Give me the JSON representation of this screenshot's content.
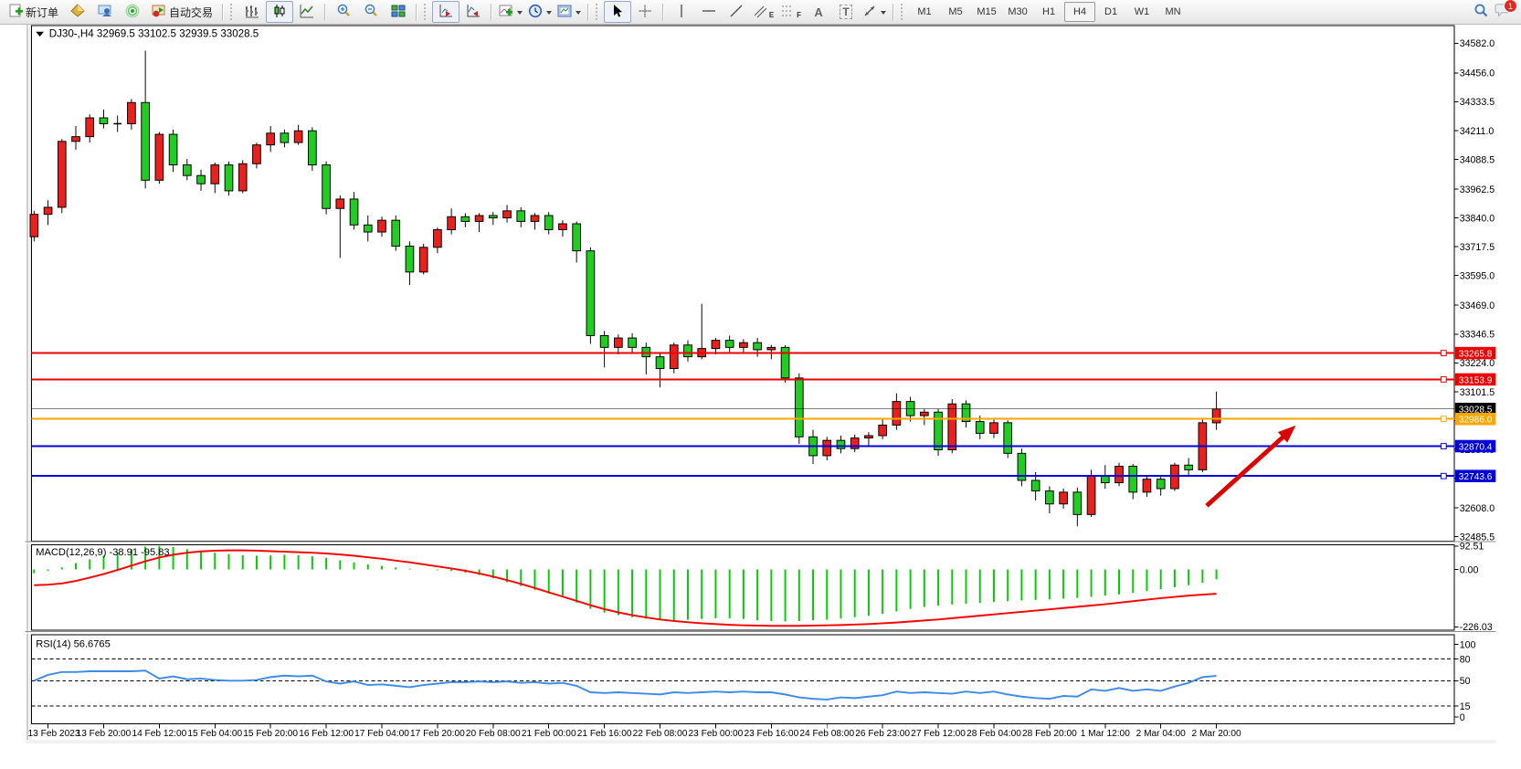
{
  "toolbar": {
    "new_order_label": "新订单",
    "autotrading_label": "自动交易",
    "timeframes": [
      "M1",
      "M5",
      "M15",
      "M30",
      "H1",
      "H4",
      "D1",
      "W1",
      "MN"
    ],
    "active_timeframe": "H4",
    "notification_count": "1",
    "icons": {
      "text_tool_glyph": "A",
      "label_tool_glyph": "T",
      "channel_sub": "E",
      "fibo_sub": "F"
    }
  },
  "chart": {
    "symbol": "DJ30-",
    "period": "H4",
    "title_full": "DJ30-,H4  32969.5 33102.5 32939.5 33028.5",
    "ohlc_current": {
      "open": 32969.5,
      "high": 33102.5,
      "low": 32939.5,
      "close": 33028.5
    }
  },
  "chart_data": [
    {
      "type": "candlestick",
      "symbol": "DJ30-",
      "timeframe": "H4",
      "bull_color": "#E8201E",
      "bear_color": "#22CC22",
      "outline_color": "#000000",
      "ylim": [
        32470,
        34650
      ],
      "y_ticks": [
        34582.0,
        34456.0,
        34333.5,
        34211.0,
        34088.5,
        33962.5,
        33840.0,
        33717.5,
        33595.0,
        33469.0,
        33346.5,
        33224.0,
        33101.5,
        32979.0,
        32856.5,
        32734.0,
        32608.0,
        32485.5
      ],
      "x_labels": [
        "13 Feb 2023",
        "13 Feb 20:00",
        "14 Feb 12:00",
        "15 Feb 04:00",
        "15 Feb 20:00",
        "16 Feb 12:00",
        "17 Feb 04:00",
        "17 Feb 20:00",
        "20 Feb 08:00",
        "21 Feb 00:00",
        "21 Feb 16:00",
        "22 Feb 08:00",
        "23 Feb 00:00",
        "23 Feb 16:00",
        "24 Feb 08:00",
        "26 Feb 23:00",
        "27 Feb 12:00",
        "28 Feb 04:00",
        "28 Feb 20:00",
        "1 Mar 12:00",
        "2 Mar 04:00",
        "2 Mar 20:00"
      ],
      "x_label_start_index": 1,
      "x_label_step": 4,
      "ohlc": [
        [
          33760,
          33870,
          33740,
          33855
        ],
        [
          33855,
          33915,
          33810,
          33885
        ],
        [
          33885,
          34175,
          33860,
          34165
        ],
        [
          34165,
          34230,
          34130,
          34185
        ],
        [
          34185,
          34280,
          34160,
          34265
        ],
        [
          34265,
          34300,
          34220,
          34240
        ],
        [
          34240,
          34275,
          34205,
          34240
        ],
        [
          34240,
          34345,
          34215,
          34330
        ],
        [
          34330,
          34550,
          33965,
          34000
        ],
        [
          34000,
          34205,
          33985,
          34195
        ],
        [
          34195,
          34215,
          34035,
          34065
        ],
        [
          34065,
          34090,
          34000,
          34020
        ],
        [
          34020,
          34045,
          33955,
          33985
        ],
        [
          33985,
          34075,
          33945,
          34065
        ],
        [
          34065,
          34080,
          33935,
          33955
        ],
        [
          33955,
          34085,
          33945,
          34070
        ],
        [
          34070,
          34160,
          34050,
          34150
        ],
        [
          34150,
          34230,
          34120,
          34200
        ],
        [
          34200,
          34215,
          34140,
          34160
        ],
        [
          34160,
          34235,
          34150,
          34210
        ],
        [
          34210,
          34225,
          34040,
          34065
        ],
        [
          34065,
          34080,
          33855,
          33880
        ],
        [
          33880,
          33935,
          33670,
          33920
        ],
        [
          33920,
          33950,
          33790,
          33810
        ],
        [
          33810,
          33850,
          33740,
          33780
        ],
        [
          33780,
          33845,
          33760,
          33830
        ],
        [
          33830,
          33850,
          33700,
          33720
        ],
        [
          33720,
          33740,
          33555,
          33610
        ],
        [
          33610,
          33730,
          33600,
          33715
        ],
        [
          33715,
          33800,
          33690,
          33790
        ],
        [
          33790,
          33880,
          33770,
          33845
        ],
        [
          33845,
          33860,
          33800,
          33825
        ],
        [
          33825,
          33860,
          33780,
          33850
        ],
        [
          33850,
          33865,
          33810,
          33840
        ],
        [
          33840,
          33895,
          33820,
          33870
        ],
        [
          33870,
          33885,
          33800,
          33825
        ],
        [
          33825,
          33860,
          33790,
          33850
        ],
        [
          33850,
          33865,
          33770,
          33790
        ],
        [
          33790,
          33830,
          33760,
          33815
        ],
        [
          33815,
          33825,
          33650,
          33700
        ],
        [
          33700,
          33715,
          33305,
          33340
        ],
        [
          33340,
          33360,
          33205,
          33290
        ],
        [
          33290,
          33345,
          33260,
          33330
        ],
        [
          33330,
          33350,
          33270,
          33290
        ],
        [
          33290,
          33310,
          33175,
          33250
        ],
        [
          33250,
          33270,
          33120,
          33200
        ],
        [
          33200,
          33310,
          33180,
          33300
        ],
        [
          33300,
          33320,
          33230,
          33250
        ],
        [
          33250,
          33475,
          33240,
          33285
        ],
        [
          33285,
          33330,
          33260,
          33320
        ],
        [
          33320,
          33340,
          33270,
          33290
        ],
        [
          33290,
          33325,
          33270,
          33310
        ],
        [
          33310,
          33330,
          33250,
          33280
        ],
        [
          33280,
          33300,
          33240,
          33290
        ],
        [
          33290,
          33300,
          33140,
          33160
        ],
        [
          33160,
          33180,
          32880,
          32910
        ],
        [
          32910,
          32940,
          32795,
          32830
        ],
        [
          32830,
          32910,
          32810,
          32895
        ],
        [
          32895,
          32915,
          32840,
          32860
        ],
        [
          32860,
          32920,
          32845,
          32905
        ],
        [
          32905,
          32930,
          32870,
          32915
        ],
        [
          32915,
          32985,
          32900,
          32960
        ],
        [
          32960,
          33095,
          32940,
          33060
        ],
        [
          33060,
          33080,
          32975,
          33000
        ],
        [
          33000,
          33030,
          32960,
          33015
        ],
        [
          33015,
          33030,
          32830,
          32855
        ],
        [
          32855,
          33070,
          32840,
          33050
        ],
        [
          33050,
          33065,
          32950,
          32975
        ],
        [
          32975,
          33000,
          32900,
          32925
        ],
        [
          32925,
          32985,
          32905,
          32970
        ],
        [
          32970,
          32980,
          32820,
          32840
        ],
        [
          32840,
          32860,
          32700,
          32725
        ],
        [
          32725,
          32760,
          32640,
          32680
        ],
        [
          32680,
          32700,
          32585,
          32625
        ],
        [
          32625,
          32690,
          32605,
          32675
        ],
        [
          32675,
          32695,
          32530,
          32580
        ],
        [
          32580,
          32770,
          32570,
          32745
        ],
        [
          32745,
          32790,
          32690,
          32715
        ],
        [
          32715,
          32800,
          32700,
          32785
        ],
        [
          32785,
          32795,
          32645,
          32675
        ],
        [
          32675,
          32745,
          32655,
          32730
        ],
        [
          32730,
          32740,
          32660,
          32690
        ],
        [
          32690,
          32800,
          32680,
          32790
        ],
        [
          32790,
          32820,
          32740,
          32770
        ],
        [
          32770,
          32990,
          32760,
          32970
        ],
        [
          32969.5,
          33102.5,
          32939.5,
          33028.5
        ]
      ],
      "hlines": [
        {
          "price": 33265.8,
          "label": "33265.8",
          "color": "#EE0000",
          "width": 2,
          "current": false
        },
        {
          "price": 33153.9,
          "label": "33153.9",
          "color": "#EE0000",
          "width": 2,
          "current": false
        },
        {
          "price": 33028.5,
          "label": "33028.5",
          "color": "#000000",
          "width": 1,
          "current": true
        },
        {
          "price": 32986.0,
          "label": "32986.0",
          "color": "#FFA500",
          "width": 2,
          "current": false
        },
        {
          "price": 32870.4,
          "label": "32870.4",
          "color": "#0000DC",
          "width": 2,
          "current": false
        },
        {
          "price": 32743.6,
          "label": "32743.6",
          "color": "#0000DC",
          "width": 2,
          "current": false
        }
      ],
      "arrow": {
        "x1_bar": 84.3,
        "y1_price": 32617,
        "x2_bar": 90.7,
        "y2_price": 32958,
        "color": "#DD0000"
      }
    },
    {
      "type": "macd",
      "label_full": "MACD(12,26,9) -38.91 -95.83",
      "main_value": -38.91,
      "signal_value": -95.83,
      "y_ticks": [
        92.51,
        0.0,
        -226.03
      ],
      "y_tick_labels": [
        "92.51",
        "0.00",
        "-226.03"
      ],
      "hist_color": "#00CC00",
      "signal_color": "#FF0000",
      "histogram": [
        -15,
        -5,
        8,
        25,
        40,
        55,
        68,
        80,
        90,
        92.5,
        88,
        80,
        72,
        66,
        60,
        56,
        54,
        55,
        58,
        56,
        52,
        45,
        36,
        28,
        20,
        14,
        8,
        3,
        0,
        -3,
        -6,
        -12,
        -22,
        -35,
        -50,
        -65,
        -80,
        -95,
        -110,
        -130,
        -155,
        -170,
        -180,
        -188,
        -194,
        -198,
        -200,
        -198,
        -195,
        -192,
        -192,
        -195,
        -200,
        -203,
        -205,
        -203,
        -200,
        -198,
        -193,
        -188,
        -182,
        -175,
        -165,
        -155,
        -148,
        -142,
        -138,
        -135,
        -132,
        -128,
        -125,
        -122,
        -120,
        -118,
        -115,
        -112,
        -108,
        -103,
        -98,
        -92,
        -85,
        -78,
        -70,
        -62,
        -52,
        -38.91
      ],
      "signal": [
        -62,
        -60,
        -55,
        -45,
        -32,
        -18,
        -2,
        15,
        32,
        47,
        58,
        66,
        71,
        74,
        75,
        75,
        74,
        72,
        70,
        68,
        66,
        63,
        59,
        54,
        48,
        42,
        35,
        28,
        20,
        12,
        4,
        -5,
        -16,
        -28,
        -42,
        -57,
        -73,
        -90,
        -107,
        -124,
        -141,
        -156,
        -169,
        -180,
        -189,
        -197,
        -203,
        -208,
        -212,
        -215,
        -218,
        -220,
        -221,
        -222,
        -222,
        -222,
        -221,
        -220,
        -219,
        -217,
        -215,
        -212,
        -209,
        -205,
        -201,
        -197,
        -192,
        -187,
        -182,
        -177,
        -172,
        -167,
        -162,
        -157,
        -152,
        -147,
        -142,
        -137,
        -131,
        -125,
        -119,
        -113,
        -108,
        -103,
        -99,
        -95.83
      ]
    },
    {
      "type": "rsi",
      "label_full": "RSI(14) 56.6765",
      "last_value": 56.6765,
      "ylim": [
        0,
        100
      ],
      "levels": [
        80,
        50,
        15
      ],
      "y_ticks": [
        100,
        80,
        50,
        15,
        0
      ],
      "y_tick_labels": [
        "100",
        "80",
        "50",
        "15",
        "0"
      ],
      "line_color": "#3C8CE8",
      "values": [
        50,
        58,
        62,
        62,
        63,
        63,
        63,
        63,
        64,
        53,
        56,
        52,
        53,
        51,
        50,
        50,
        51,
        55,
        57,
        56,
        57,
        49,
        46,
        49,
        44,
        45,
        43,
        41,
        44,
        46,
        48,
        48,
        49,
        48,
        49,
        47,
        48,
        46,
        47,
        43,
        34,
        33,
        34,
        33,
        32,
        31,
        34,
        33,
        34,
        35,
        34,
        35,
        34,
        34,
        31,
        27,
        25,
        24,
        27,
        26,
        28,
        30,
        35,
        33,
        34,
        33,
        32,
        35,
        33,
        35,
        31,
        28,
        26,
        25,
        29,
        28,
        38,
        36,
        40,
        36,
        38,
        36,
        42,
        47,
        55,
        56.68
      ]
    }
  ]
}
